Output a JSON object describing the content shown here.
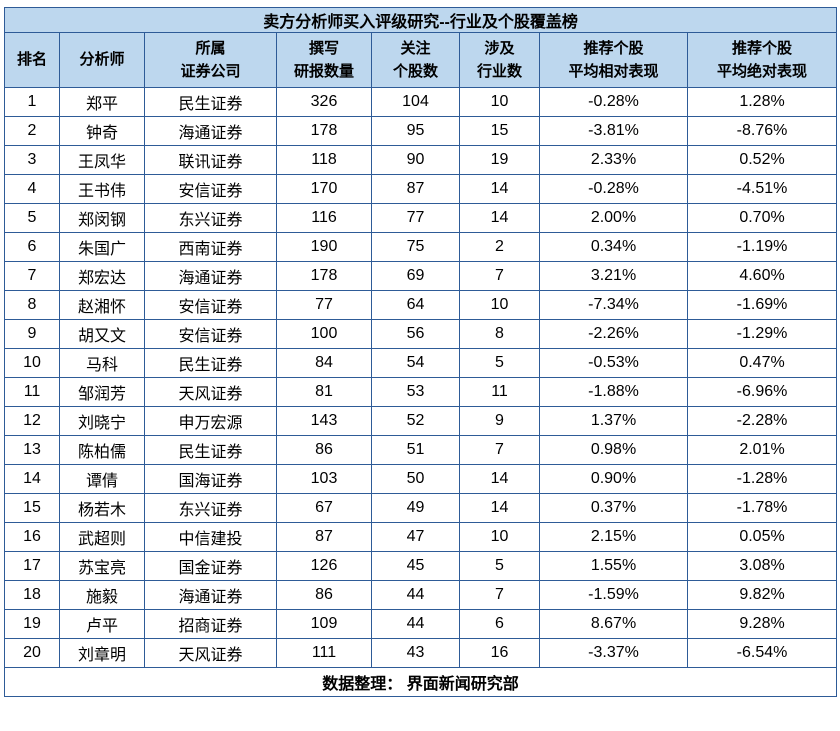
{
  "chart_data": {
    "type": "table",
    "title": "卖方分析师买入评级研究--行业及个股覆盖榜",
    "columns": [
      {
        "key": "rank",
        "lines": [
          "排名"
        ]
      },
      {
        "key": "analyst",
        "lines": [
          "分析师"
        ]
      },
      {
        "key": "firm",
        "lines": [
          "所属",
          "证券公司"
        ]
      },
      {
        "key": "reports",
        "lines": [
          "撰写",
          "研报数量"
        ]
      },
      {
        "key": "stocks",
        "lines": [
          "关注",
          "个股数"
        ]
      },
      {
        "key": "industries",
        "lines": [
          "涉及",
          "行业数"
        ]
      },
      {
        "key": "relative",
        "lines": [
          "推荐个股",
          "平均相对表现"
        ]
      },
      {
        "key": "absolute",
        "lines": [
          "推荐个股",
          "平均绝对表现"
        ]
      }
    ],
    "rows": [
      {
        "rank": 1,
        "analyst": "郑平",
        "firm": "民生证券",
        "reports": 326,
        "stocks": 104,
        "industries": 10,
        "relative": "-0.28%",
        "absolute": "1.28%"
      },
      {
        "rank": 2,
        "analyst": "钟奇",
        "firm": "海通证券",
        "reports": 178,
        "stocks": 95,
        "industries": 15,
        "relative": "-3.81%",
        "absolute": "-8.76%"
      },
      {
        "rank": 3,
        "analyst": "王凤华",
        "firm": "联讯证券",
        "reports": 118,
        "stocks": 90,
        "industries": 19,
        "relative": "2.33%",
        "absolute": "0.52%"
      },
      {
        "rank": 4,
        "analyst": "王书伟",
        "firm": "安信证券",
        "reports": 170,
        "stocks": 87,
        "industries": 14,
        "relative": "-0.28%",
        "absolute": "-4.51%"
      },
      {
        "rank": 5,
        "analyst": "郑闵钢",
        "firm": "东兴证券",
        "reports": 116,
        "stocks": 77,
        "industries": 14,
        "relative": "2.00%",
        "absolute": "0.70%"
      },
      {
        "rank": 6,
        "analyst": "朱国广",
        "firm": "西南证券",
        "reports": 190,
        "stocks": 75,
        "industries": 2,
        "relative": "0.34%",
        "absolute": "-1.19%"
      },
      {
        "rank": 7,
        "analyst": "郑宏达",
        "firm": "海通证券",
        "reports": 178,
        "stocks": 69,
        "industries": 7,
        "relative": "3.21%",
        "absolute": "4.60%"
      },
      {
        "rank": 8,
        "analyst": "赵湘怀",
        "firm": "安信证券",
        "reports": 77,
        "stocks": 64,
        "industries": 10,
        "relative": "-7.34%",
        "absolute": "-1.69%"
      },
      {
        "rank": 9,
        "analyst": "胡又文",
        "firm": "安信证券",
        "reports": 100,
        "stocks": 56,
        "industries": 8,
        "relative": "-2.26%",
        "absolute": "-1.29%"
      },
      {
        "rank": 10,
        "analyst": "马科",
        "firm": "民生证券",
        "reports": 84,
        "stocks": 54,
        "industries": 5,
        "relative": "-0.53%",
        "absolute": "0.47%"
      },
      {
        "rank": 11,
        "analyst": "邹润芳",
        "firm": "天风证券",
        "reports": 81,
        "stocks": 53,
        "industries": 11,
        "relative": "-1.88%",
        "absolute": "-6.96%"
      },
      {
        "rank": 12,
        "analyst": "刘晓宁",
        "firm": "申万宏源",
        "reports": 143,
        "stocks": 52,
        "industries": 9,
        "relative": "1.37%",
        "absolute": "-2.28%"
      },
      {
        "rank": 13,
        "analyst": "陈柏儒",
        "firm": "民生证券",
        "reports": 86,
        "stocks": 51,
        "industries": 7,
        "relative": "0.98%",
        "absolute": "2.01%"
      },
      {
        "rank": 14,
        "analyst": "谭倩",
        "firm": "国海证券",
        "reports": 103,
        "stocks": 50,
        "industries": 14,
        "relative": "0.90%",
        "absolute": "-1.28%"
      },
      {
        "rank": 15,
        "analyst": "杨若木",
        "firm": "东兴证券",
        "reports": 67,
        "stocks": 49,
        "industries": 14,
        "relative": "0.37%",
        "absolute": "-1.78%"
      },
      {
        "rank": 16,
        "analyst": "武超则",
        "firm": "中信建投",
        "reports": 87,
        "stocks": 47,
        "industries": 10,
        "relative": "2.15%",
        "absolute": "0.05%"
      },
      {
        "rank": 17,
        "analyst": "苏宝亮",
        "firm": "国金证券",
        "reports": 126,
        "stocks": 45,
        "industries": 5,
        "relative": "1.55%",
        "absolute": "3.08%"
      },
      {
        "rank": 18,
        "analyst": "施毅",
        "firm": "海通证券",
        "reports": 86,
        "stocks": 44,
        "industries": 7,
        "relative": "-1.59%",
        "absolute": "9.82%"
      },
      {
        "rank": 19,
        "analyst": "卢平",
        "firm": "招商证券",
        "reports": 109,
        "stocks": 44,
        "industries": 6,
        "relative": "8.67%",
        "absolute": "9.28%"
      },
      {
        "rank": 20,
        "analyst": "刘章明",
        "firm": "天风证券",
        "reports": 111,
        "stocks": 43,
        "industries": 16,
        "relative": "-3.37%",
        "absolute": "-6.54%"
      }
    ],
    "footer": "数据整理： 界面新闻研究部"
  },
  "colors": {
    "header_bg": "#BDD7EE",
    "border": "#2E5B97"
  }
}
